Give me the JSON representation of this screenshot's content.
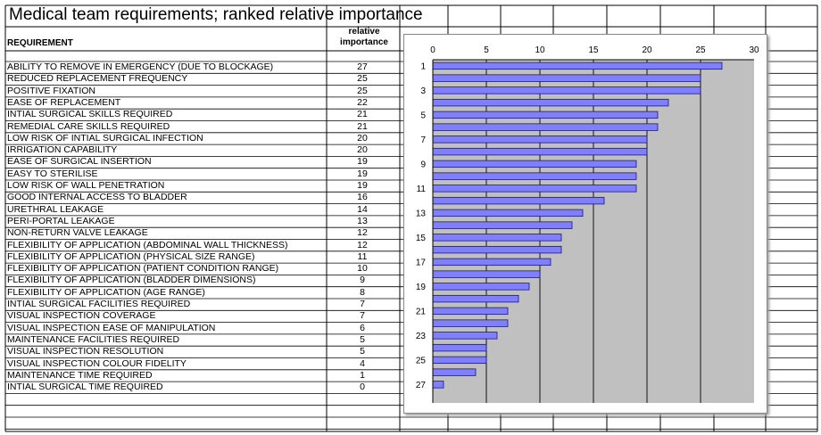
{
  "sheet": {
    "title": "Medical team requirements; ranked relative importance",
    "col_requirement": "REQUIREMENT",
    "col_relative_1": "relative",
    "col_relative_2": "importance"
  },
  "rows": [
    {
      "label": "ABILITY TO REMOVE IN EMERGENCY (DUE TO BLOCKAGE)",
      "value": "27"
    },
    {
      "label": "REDUCED REPLACEMENT FREQUENCY",
      "value": "25"
    },
    {
      "label": "POSITIVE FIXATION",
      "value": "25"
    },
    {
      "label": "EASE OF REPLACEMENT",
      "value": "22"
    },
    {
      "label": "INTIAL SURGICAL SKILLS REQUIRED",
      "value": "21"
    },
    {
      "label": "REMEDIAL CARE SKILLS REQUIRED",
      "value": "21"
    },
    {
      "label": "LOW RISK OF INTIAL SURGICAL INFECTION",
      "value": "20"
    },
    {
      "label": "IRRIGATION CAPABILITY",
      "value": "20"
    },
    {
      "label": "EASE OF SURGICAL INSERTION",
      "value": "19"
    },
    {
      "label": "EASY TO STERILISE",
      "value": "19"
    },
    {
      "label": "LOW RISK OF WALL PENETRATION",
      "value": "19"
    },
    {
      "label": "GOOD INTERNAL ACCESS TO BLADDER",
      "value": "16"
    },
    {
      "label": "URETHRAL LEAKAGE",
      "value": "14"
    },
    {
      "label": "PERI-PORTAL LEAKAGE",
      "value": "13"
    },
    {
      "label": "NON-RETURN VALVE LEAKAGE",
      "value": "12"
    },
    {
      "label": "FLEXIBILITY OF APPLICATION (ABDOMINAL WALL THICKNESS)",
      "value": "12"
    },
    {
      "label": "FLEXIBILITY OF APPLICATION (PHYSICAL SIZE RANGE)",
      "value": "11"
    },
    {
      "label": "FLEXIBILITY OF APPLICATION (PATIENT CONDITION RANGE)",
      "value": "10"
    },
    {
      "label": "FLEXIBILITY OF APPLICATION (BLADDER DIMENSIONS)",
      "value": "9"
    },
    {
      "label": "FLEXIBILITY OF APPLICATION (AGE RANGE)",
      "value": "8"
    },
    {
      "label": "INTIAL SURGICAL FACILITIES REQUIRED",
      "value": "7"
    },
    {
      "label": "VISUAL INSPECTION COVERAGE",
      "value": "7"
    },
    {
      "label": "VISUAL INSPECTION EASE OF MANIPULATION",
      "value": "6"
    },
    {
      "label": "MAINTENANCE FACILITIES REQUIRED",
      "value": "5"
    },
    {
      "label": "VISUAL INSPECTION RESOLUTION",
      "value": "5"
    },
    {
      "label": "VISUAL INSPECTION COLOUR FIDELITY",
      "value": "4"
    },
    {
      "label": "MAINTENANCE TIME REQUIRED",
      "value": "1"
    },
    {
      "label": "INTIAL SURGICAL TIME REQUIRED",
      "value": "0"
    }
  ],
  "chart_data": {
    "type": "bar",
    "orientation": "horizontal",
    "title": "",
    "xlabel": "",
    "ylabel": "",
    "categories": [
      1,
      2,
      3,
      4,
      5,
      6,
      7,
      8,
      9,
      10,
      11,
      12,
      13,
      14,
      15,
      16,
      17,
      18,
      19,
      20,
      21,
      22,
      23,
      24,
      25,
      26,
      27,
      28
    ],
    "category_tick_labels": [
      "1",
      "3",
      "5",
      "7",
      "9",
      "11",
      "13",
      "15",
      "17",
      "19",
      "21",
      "23",
      "25",
      "27"
    ],
    "values": [
      27,
      25,
      25,
      22,
      21,
      21,
      20,
      20,
      19,
      19,
      19,
      16,
      14,
      13,
      12,
      12,
      11,
      10,
      9,
      8,
      7,
      7,
      6,
      5,
      5,
      4,
      1,
      0
    ],
    "xlim": [
      0,
      30
    ],
    "x_ticks": [
      "0",
      "5",
      "10",
      "15",
      "20",
      "25",
      "30"
    ],
    "x_axis_position": "top",
    "grid": "vertical",
    "legend": "none",
    "colors": {
      "bar": "#8080ff",
      "bar_border": "#1a1a66",
      "plot_bg": "#c0c0c0",
      "grid": "#000000"
    }
  }
}
